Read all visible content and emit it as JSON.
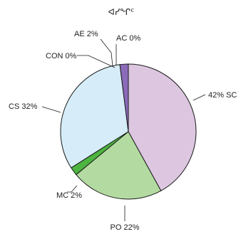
{
  "chart_data": {
    "type": "pie",
    "title": "ᐊᓯᖏᑦ",
    "slices": [
      {
        "name": "SC",
        "value": 42,
        "label": "42% SC",
        "color": "#dcc6e0"
      },
      {
        "name": "PO",
        "value": 22,
        "label": "PO 22%",
        "color": "#b3dba1"
      },
      {
        "name": "MC",
        "value": 2,
        "label": "MC 2%",
        "color": "#4cb43f"
      },
      {
        "name": "CS",
        "value": 32,
        "label": "CS 32%",
        "color": "#d6edf9"
      },
      {
        "name": "CON",
        "value": 0,
        "label": "CON 0%",
        "color": "#d6edf9"
      },
      {
        "name": "AE",
        "value": 2,
        "label": "AE 2%",
        "color": "#8b6bb8"
      },
      {
        "name": "AC",
        "value": 0,
        "label": "AC 0%",
        "color": "#8b6bb8"
      }
    ],
    "start_angle_deg": 0,
    "direction": "clockwise"
  }
}
